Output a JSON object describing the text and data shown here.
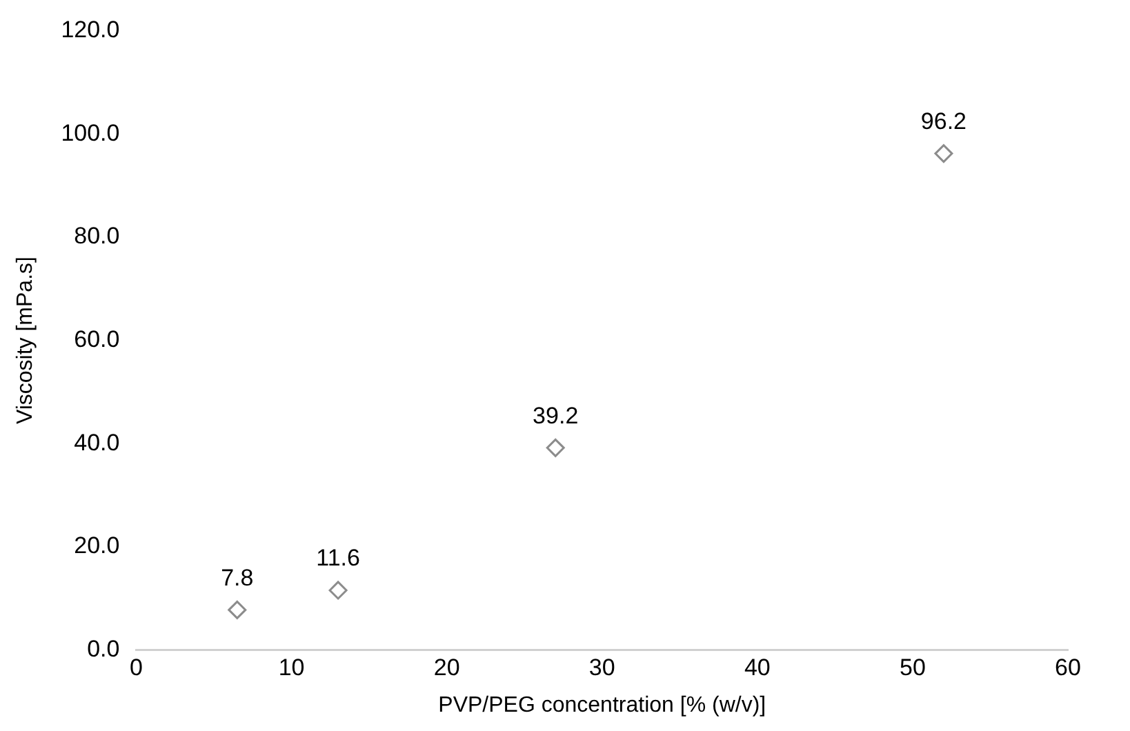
{
  "chart_data": {
    "type": "scatter",
    "xlabel": "PVP/PEG concentration [% (w/v)]",
    "ylabel": "Viscosity [mPa.s]",
    "x": [
      6.5,
      13,
      27,
      52
    ],
    "series": [
      {
        "color": "#8c8c8c",
        "values": [
          7.8,
          11.6,
          39.2,
          96.2
        ]
      }
    ],
    "xlim": [
      0,
      60
    ],
    "xticks": [
      0,
      10,
      20,
      30,
      40,
      50,
      60
    ],
    "ylim": [
      0,
      120
    ],
    "yticks": [
      {
        "value": 0,
        "label": "0.0"
      },
      {
        "value": 20,
        "label": "20.0"
      },
      {
        "value": 40,
        "label": "40.0"
      },
      {
        "value": 60,
        "label": "60.0"
      },
      {
        "value": 80,
        "label": "80.0"
      },
      {
        "value": 100,
        "label": "100.0"
      },
      {
        "value": 120,
        "label": "120.0"
      }
    ],
    "marker": "diamond",
    "data_labels": true,
    "grid": false,
    "legend": false
  }
}
